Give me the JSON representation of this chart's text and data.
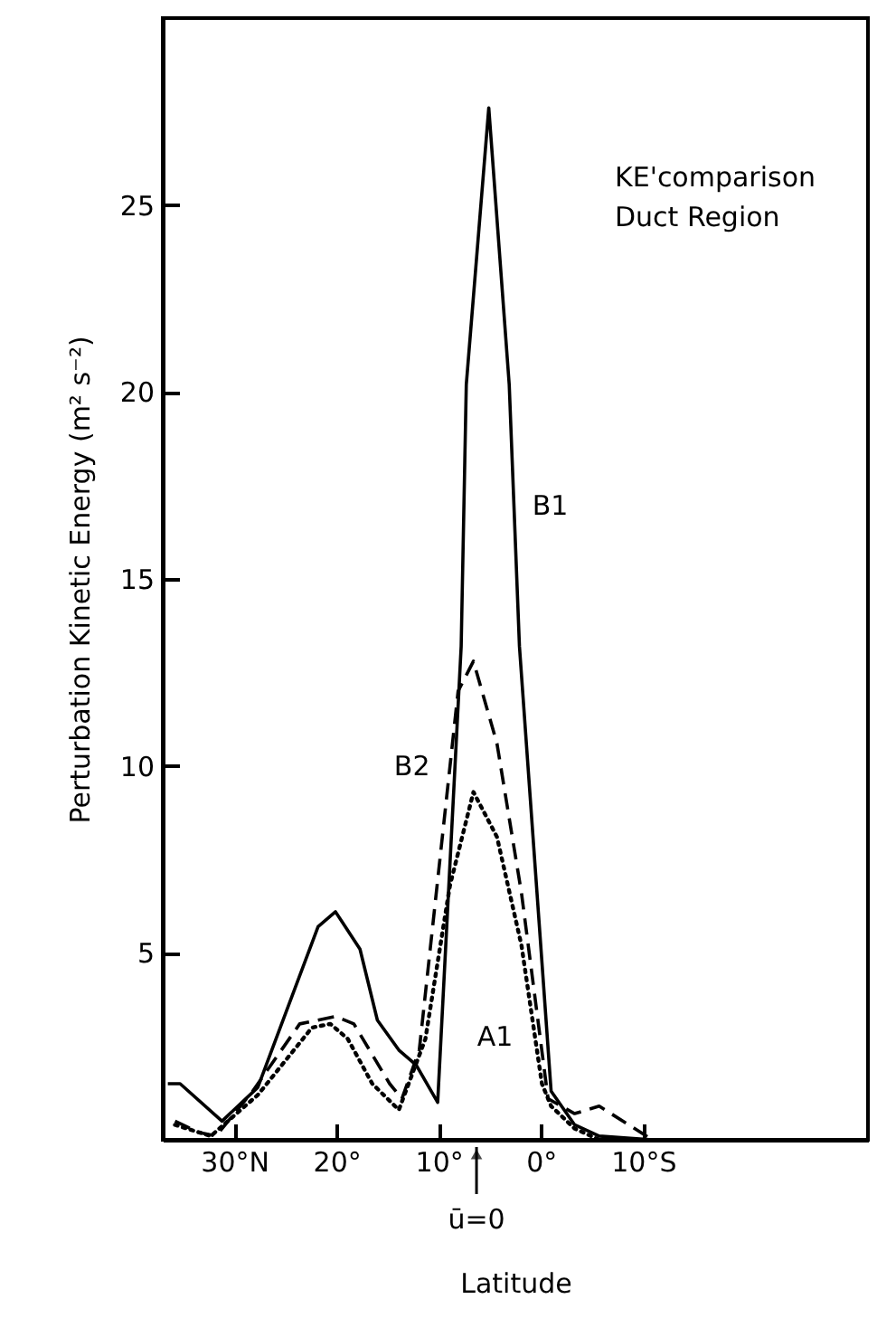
{
  "chart_data": {
    "type": "line",
    "xlabel": "Latitude",
    "ylabel": "Perturbation  Kinetic  Energy  (m² s⁻²)",
    "xlim": [
      37,
      -32
    ],
    "ylim": [
      0,
      30
    ],
    "xticks": [
      {
        "value": 30,
        "label": "30°N"
      },
      {
        "value": 20,
        "label": "20°"
      },
      {
        "value": 10,
        "label": "10°"
      },
      {
        "value": 0,
        "label": "0°"
      },
      {
        "value": -10,
        "label": "10°S"
      }
    ],
    "yticks": [
      5,
      10,
      15,
      20,
      25
    ],
    "grid": false,
    "series": [
      {
        "name": "B1",
        "color": "#000000",
        "line_style": "solid",
        "x": [
          36.5,
          35.3,
          31.2,
          27.7,
          21.8,
          20.1,
          17.7,
          16.0,
          13.9,
          12.2,
          10.1,
          7.8,
          7.3,
          5.1,
          3.1,
          2.1,
          -1.0,
          -3.3,
          -5.7,
          -10.9,
          -31
        ],
        "values": [
          1.5,
          1.5,
          0.5,
          1.4,
          5.7,
          6.1,
          5.1,
          3.2,
          2.4,
          2.0,
          1.0,
          13.2,
          20.2,
          27.6,
          20.2,
          13.2,
          1.3,
          0.4,
          0.1,
          0,
          0
        ]
      },
      {
        "name": "B2",
        "color": "#000000",
        "line_style": "dashed",
        "x": [
          35.8,
          33.5,
          31.8,
          28.2,
          23.6,
          20.1,
          18.3,
          14.8,
          13.6,
          11.9,
          8.1,
          6.6,
          4.3,
          1.9,
          -0.7,
          -3.3,
          -5.7,
          -8.6,
          -10.9
        ],
        "values": [
          0.5,
          0.2,
          0.1,
          1.3,
          3.1,
          3.3,
          3.1,
          1.5,
          1.1,
          2.4,
          12.0,
          12.8,
          10.6,
          6.6,
          1.1,
          0.7,
          0.9,
          0.4,
          0
        ]
      },
      {
        "name": "A1",
        "color": "#000000",
        "line_style": "dotted",
        "x": [
          35.8,
          32.3,
          27.7,
          22.4,
          20.6,
          18.9,
          16.5,
          13.9,
          11.3,
          8.9,
          6.6,
          4.3,
          1.9,
          -0.1,
          -1.0,
          -3.3,
          -5.7
        ],
        "values": [
          0.4,
          0.1,
          1.2,
          3.0,
          3.1,
          2.7,
          1.5,
          0.8,
          2.7,
          6.8,
          9.3,
          8.1,
          5.2,
          1.5,
          0.9,
          0.3,
          0
        ]
      }
    ],
    "annotations": [
      "KE'comparison",
      "Duct Region",
      {
        "text": "ū=0",
        "x": 6.3
      }
    ]
  }
}
